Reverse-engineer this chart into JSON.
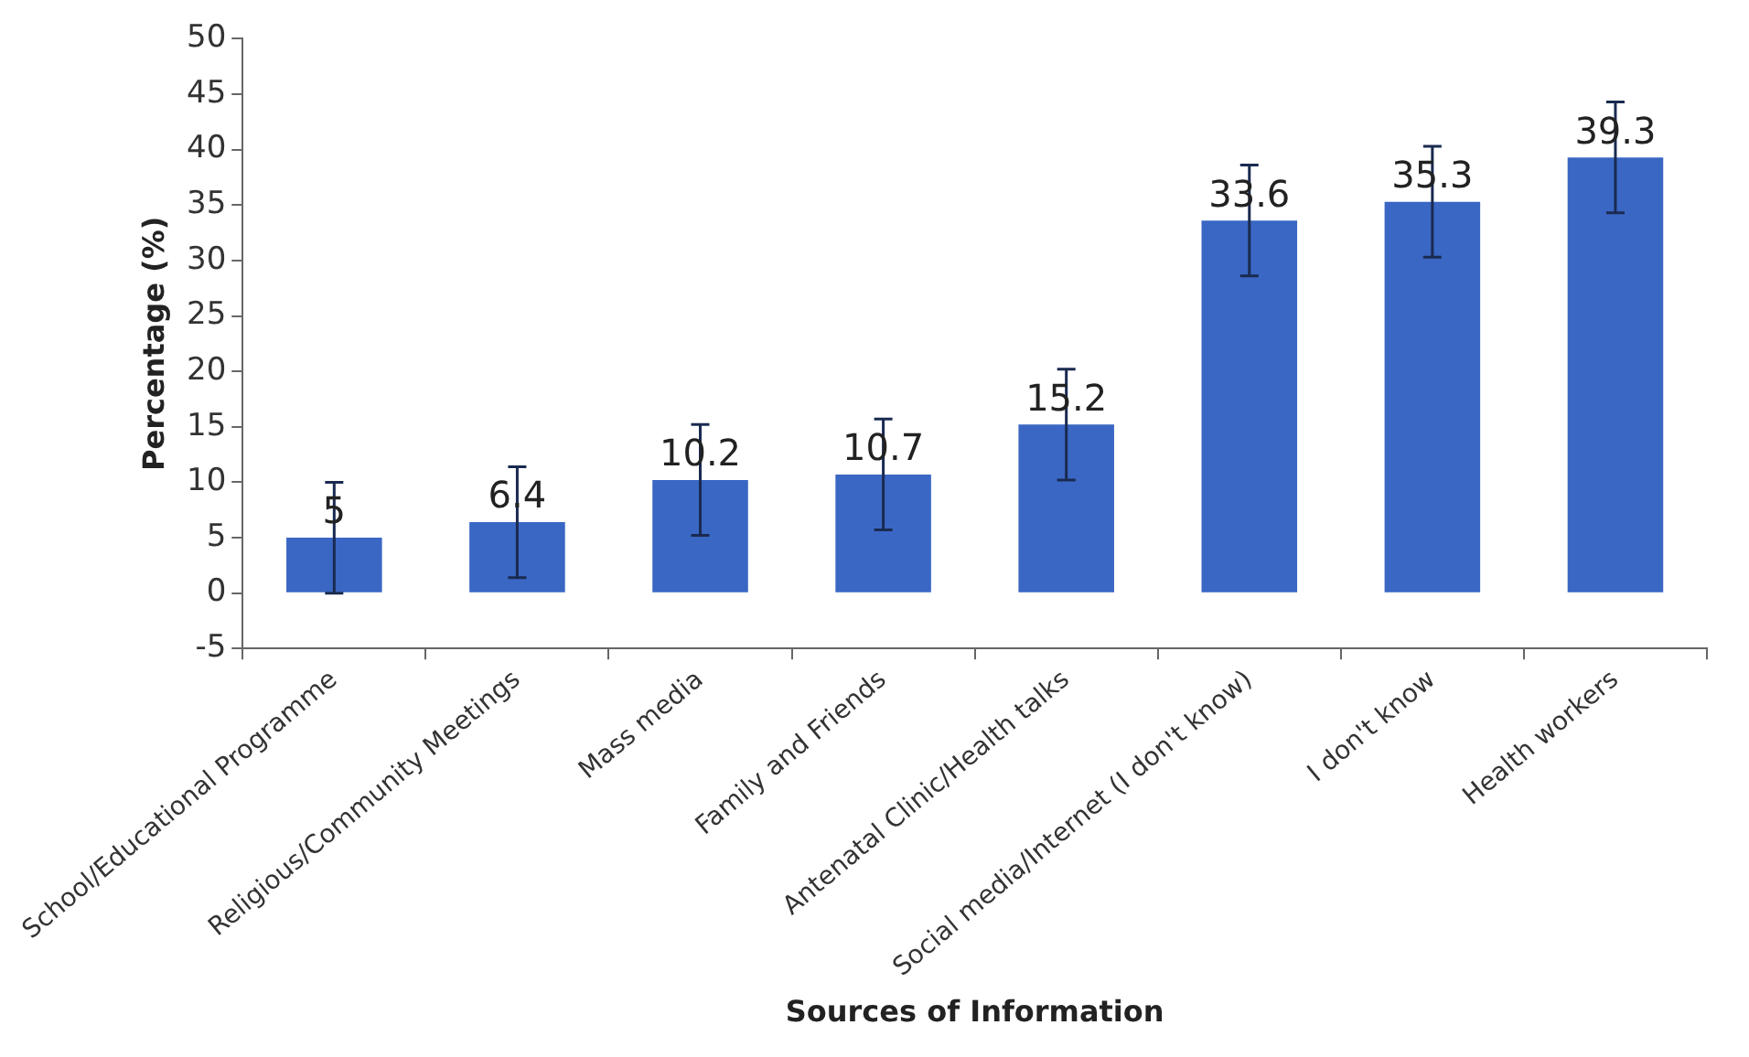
{
  "chart_data": {
    "type": "bar",
    "xlabel": "Sources of Information",
    "ylabel": "Percentage (%)",
    "categories": [
      "School/Educational Programme",
      "Religious/Community Meetings",
      "Mass media",
      "Family and Friends",
      "Antenatal Clinic/Health talks",
      "Social media/Internet (I don't know)",
      "I don't know",
      "Health workers"
    ],
    "values": [
      5,
      6.4,
      10.2,
      10.7,
      15.2,
      33.6,
      35.3,
      39.3
    ],
    "errors": [
      5,
      5,
      5,
      5,
      5,
      5,
      5,
      5
    ],
    "color": "#3a67c4",
    "ylim": [
      -5,
      50
    ],
    "yticks": [
      -5,
      0,
      5,
      10,
      15,
      20,
      25,
      30,
      35,
      40,
      45,
      50
    ],
    "grid": false,
    "legend": false,
    "data_labels": true
  }
}
